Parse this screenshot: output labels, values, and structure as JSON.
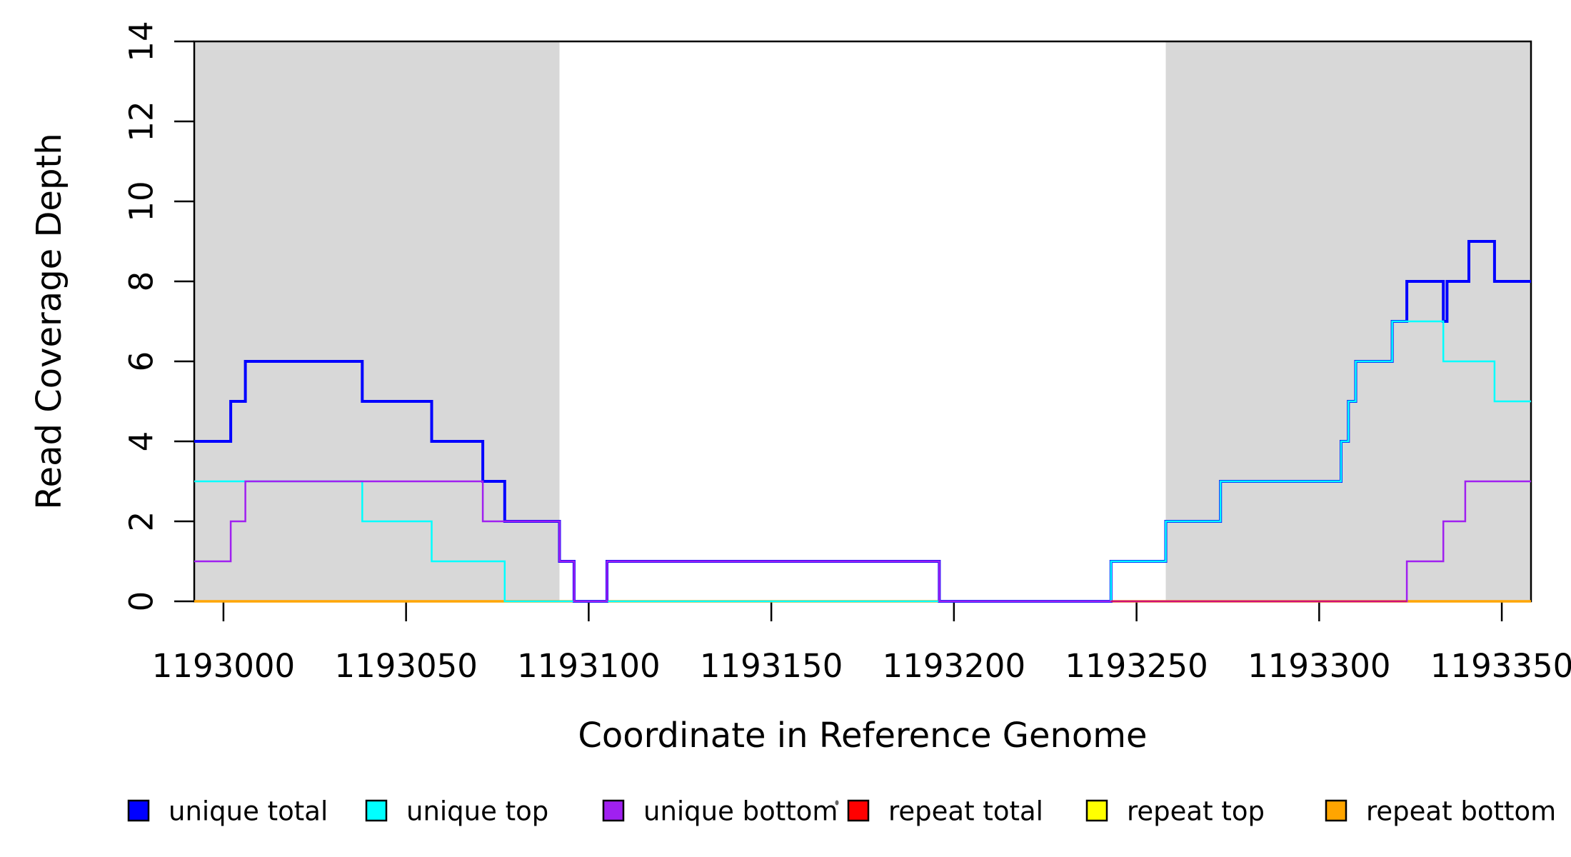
{
  "figure_title": "",
  "chart_data": {
    "type": "line",
    "line_style": "step-post",
    "title": "",
    "xlabel": "Coordinate in Reference Genome",
    "ylabel": "Read Coverage Depth",
    "xlim": [
      1192992,
      1193358
    ],
    "ylim": [
      0,
      14
    ],
    "grid": false,
    "x_ticks": [
      1193000,
      1193050,
      1193100,
      1193150,
      1193200,
      1193250,
      1193300,
      1193350
    ],
    "x_tick_labels": [
      "1193000",
      "1193050",
      "1193100",
      "1193150",
      "1193200",
      "1193250",
      "1193300",
      "1193350"
    ],
    "y_ticks": [
      0,
      2,
      4,
      6,
      8,
      10,
      12,
      14
    ],
    "y_tick_labels": [
      "0",
      "2",
      "4",
      "6",
      "8",
      "10",
      "12",
      "14"
    ],
    "shade_color": "#D8D8D8",
    "shaded_regions": [
      {
        "name": "left-repeat-region",
        "start": 1192992,
        "end": 1193092
      },
      {
        "name": "right-repeat-region",
        "start": 1193258,
        "end": 1193358
      }
    ],
    "series": [
      {
        "name": "repeat total",
        "color": "#FF0000",
        "width": 3,
        "end": 1193358,
        "points": [
          [
            1192992,
            0
          ]
        ]
      },
      {
        "name": "repeat top",
        "color": "#FFFF00",
        "width": 3,
        "end": 1193358,
        "points": [
          [
            1192992,
            0
          ]
        ]
      },
      {
        "name": "repeat bottom",
        "color": "#FFA500",
        "width": 3.5,
        "end": 1193358,
        "points": [
          [
            1192992,
            0
          ]
        ]
      },
      {
        "name": "unique total",
        "color": "#0000FF",
        "width": 4,
        "end": 1193358,
        "points": [
          [
            1192992,
            4
          ],
          [
            1193002,
            5
          ],
          [
            1193006,
            6
          ],
          [
            1193038,
            5
          ],
          [
            1193057,
            4
          ],
          [
            1193071,
            3
          ],
          [
            1193077,
            2
          ],
          [
            1193092,
            1
          ],
          [
            1193096,
            0
          ],
          [
            1193105,
            1
          ],
          [
            1193196,
            0
          ],
          [
            1193243,
            1
          ],
          [
            1193258,
            2
          ],
          [
            1193273,
            3
          ],
          [
            1193306,
            4
          ],
          [
            1193308,
            5
          ],
          [
            1193310,
            6
          ],
          [
            1193320,
            7
          ],
          [
            1193324,
            8
          ],
          [
            1193334,
            7
          ],
          [
            1193335,
            8
          ],
          [
            1193341,
            9
          ],
          [
            1193348,
            8
          ]
        ]
      },
      {
        "name": "unique top",
        "color": "#00FFFF",
        "width": 2.5,
        "end": 1193358,
        "points": [
          [
            1192992,
            3
          ],
          [
            1193038,
            2
          ],
          [
            1193057,
            1
          ],
          [
            1193077,
            0
          ],
          [
            1193243,
            1
          ],
          [
            1193258,
            2
          ],
          [
            1193273,
            3
          ],
          [
            1193306,
            4
          ],
          [
            1193308,
            5
          ],
          [
            1193310,
            6
          ],
          [
            1193320,
            7
          ],
          [
            1193334,
            6
          ],
          [
            1193348,
            5
          ]
        ]
      },
      {
        "name": "unique bottom",
        "color": "#A020F0",
        "width": 2.5,
        "end": 1193358,
        "points": [
          [
            1192992,
            1
          ],
          [
            1193002,
            2
          ],
          [
            1193006,
            3
          ],
          [
            1193071,
            2
          ],
          [
            1193092,
            1
          ],
          [
            1193096,
            0
          ],
          [
            1193105,
            1
          ],
          [
            1193196,
            0
          ],
          [
            1193324,
            1
          ],
          [
            1193334,
            2
          ],
          [
            1193340,
            3
          ]
        ]
      }
    ],
    "baseline_overlay": {
      "note": "magenta blend where red repeat line shows over purple at depth 0",
      "color": "#FF0000",
      "opacity": 0.5,
      "width": 2.5,
      "start": 1193243,
      "end": 1193324,
      "value": 0
    },
    "legend_position": "bottom"
  },
  "legend": {
    "items": [
      {
        "label": "unique total",
        "color": "#0000FF"
      },
      {
        "label": "unique top",
        "color": "#00FFFF"
      },
      {
        "label": "unique bottom",
        "color": "#A020F0"
      },
      {
        "label": "repeat total",
        "color": "#FF0000"
      },
      {
        "label": "repeat top",
        "color": "#FFFF00"
      },
      {
        "label": "repeat bottom",
        "color": "#FFA500"
      }
    ]
  },
  "colors": {
    "axis": "#000000",
    "background": "#FFFFFF",
    "band": "#D8D8D8"
  }
}
